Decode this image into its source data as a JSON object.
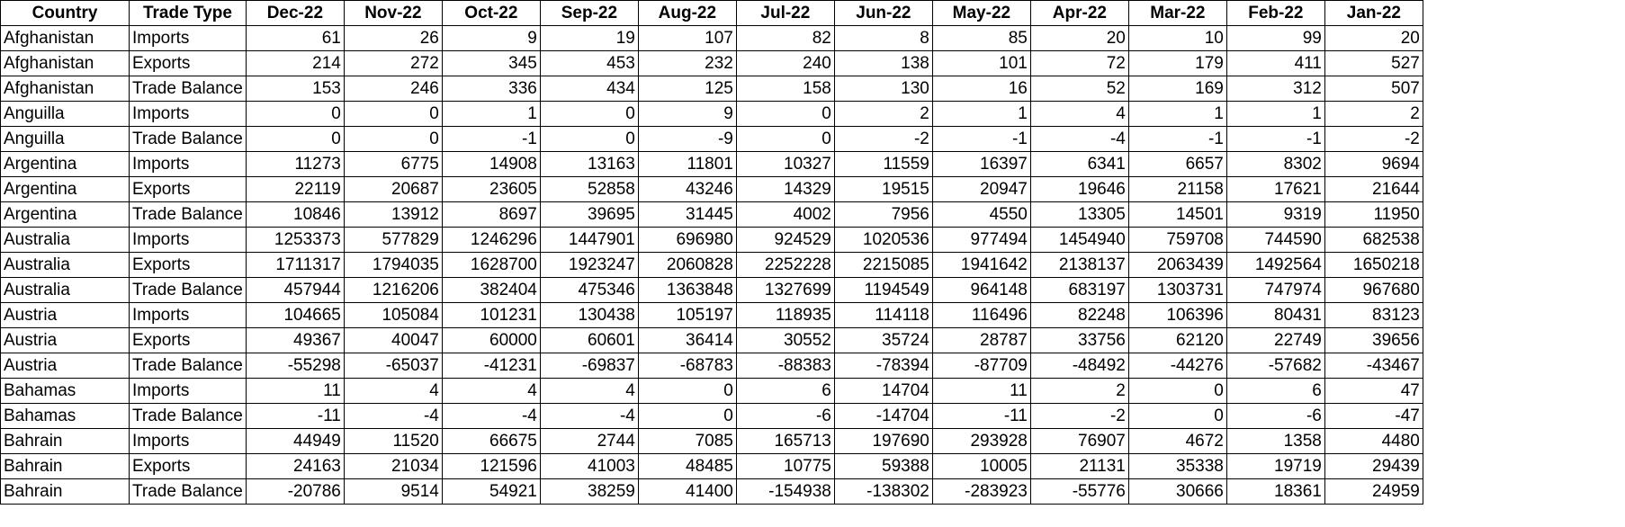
{
  "table": {
    "headers": [
      "Country",
      "Trade Type",
      "Dec-22",
      "Nov-22",
      "Oct-22",
      "Sep-22",
      "Aug-22",
      "Jul-22",
      "Jun-22",
      "May-22",
      "Apr-22",
      "Mar-22",
      "Feb-22",
      "Jan-22"
    ],
    "rows": [
      [
        "Afghanistan",
        "Imports",
        "61",
        "26",
        "9",
        "19",
        "107",
        "82",
        "8",
        "85",
        "20",
        "10",
        "99",
        "20"
      ],
      [
        "Afghanistan",
        "Exports",
        "214",
        "272",
        "345",
        "453",
        "232",
        "240",
        "138",
        "101",
        "72",
        "179",
        "411",
        "527"
      ],
      [
        "Afghanistan",
        "Trade Balance",
        "153",
        "246",
        "336",
        "434",
        "125",
        "158",
        "130",
        "16",
        "52",
        "169",
        "312",
        "507"
      ],
      [
        "Anguilla",
        "Imports",
        "0",
        "0",
        "1",
        "0",
        "9",
        "0",
        "2",
        "1",
        "4",
        "1",
        "1",
        "2"
      ],
      [
        "Anguilla",
        "Trade Balance",
        "0",
        "0",
        "-1",
        "0",
        "-9",
        "0",
        "-2",
        "-1",
        "-4",
        "-1",
        "-1",
        "-2"
      ],
      [
        "Argentina",
        "Imports",
        "11273",
        "6775",
        "14908",
        "13163",
        "11801",
        "10327",
        "11559",
        "16397",
        "6341",
        "6657",
        "8302",
        "9694"
      ],
      [
        "Argentina",
        "Exports",
        "22119",
        "20687",
        "23605",
        "52858",
        "43246",
        "14329",
        "19515",
        "20947",
        "19646",
        "21158",
        "17621",
        "21644"
      ],
      [
        "Argentina",
        "Trade Balance",
        "10846",
        "13912",
        "8697",
        "39695",
        "31445",
        "4002",
        "7956",
        "4550",
        "13305",
        "14501",
        "9319",
        "11950"
      ],
      [
        "Australia",
        "Imports",
        "1253373",
        "577829",
        "1246296",
        "1447901",
        "696980",
        "924529",
        "1020536",
        "977494",
        "1454940",
        "759708",
        "744590",
        "682538"
      ],
      [
        "Australia",
        "Exports",
        "1711317",
        "1794035",
        "1628700",
        "1923247",
        "2060828",
        "2252228",
        "2215085",
        "1941642",
        "2138137",
        "2063439",
        "1492564",
        "1650218"
      ],
      [
        "Australia",
        "Trade Balance",
        "457944",
        "1216206",
        "382404",
        "475346",
        "1363848",
        "1327699",
        "1194549",
        "964148",
        "683197",
        "1303731",
        "747974",
        "967680"
      ],
      [
        "Austria",
        "Imports",
        "104665",
        "105084",
        "101231",
        "130438",
        "105197",
        "118935",
        "114118",
        "116496",
        "82248",
        "106396",
        "80431",
        "83123"
      ],
      [
        "Austria",
        "Exports",
        "49367",
        "40047",
        "60000",
        "60601",
        "36414",
        "30552",
        "35724",
        "28787",
        "33756",
        "62120",
        "22749",
        "39656"
      ],
      [
        "Austria",
        "Trade Balance",
        "-55298",
        "-65037",
        "-41231",
        "-69837",
        "-68783",
        "-88383",
        "-78394",
        "-87709",
        "-48492",
        "-44276",
        "-57682",
        "-43467"
      ],
      [
        "Bahamas",
        "Imports",
        "11",
        "4",
        "4",
        "4",
        "0",
        "6",
        "14704",
        "11",
        "2",
        "0",
        "6",
        "47"
      ],
      [
        "Bahamas",
        "Trade Balance",
        "-11",
        "-4",
        "-4",
        "-4",
        "0",
        "-6",
        "-14704",
        "-11",
        "-2",
        "0",
        "-6",
        "-47"
      ],
      [
        "Bahrain",
        "Imports",
        "44949",
        "11520",
        "66675",
        "2744",
        "7085",
        "165713",
        "197690",
        "293928",
        "76907",
        "4672",
        "1358",
        "4480"
      ],
      [
        "Bahrain",
        "Exports",
        "24163",
        "21034",
        "121596",
        "41003",
        "48485",
        "10775",
        "59388",
        "10005",
        "21131",
        "35338",
        "19719",
        "29439"
      ],
      [
        "Bahrain",
        "Trade Balance",
        "-20786",
        "9514",
        "54921",
        "38259",
        "41400",
        "-154938",
        "-138302",
        "-283923",
        "-55776",
        "30666",
        "18361",
        "24959"
      ]
    ]
  }
}
